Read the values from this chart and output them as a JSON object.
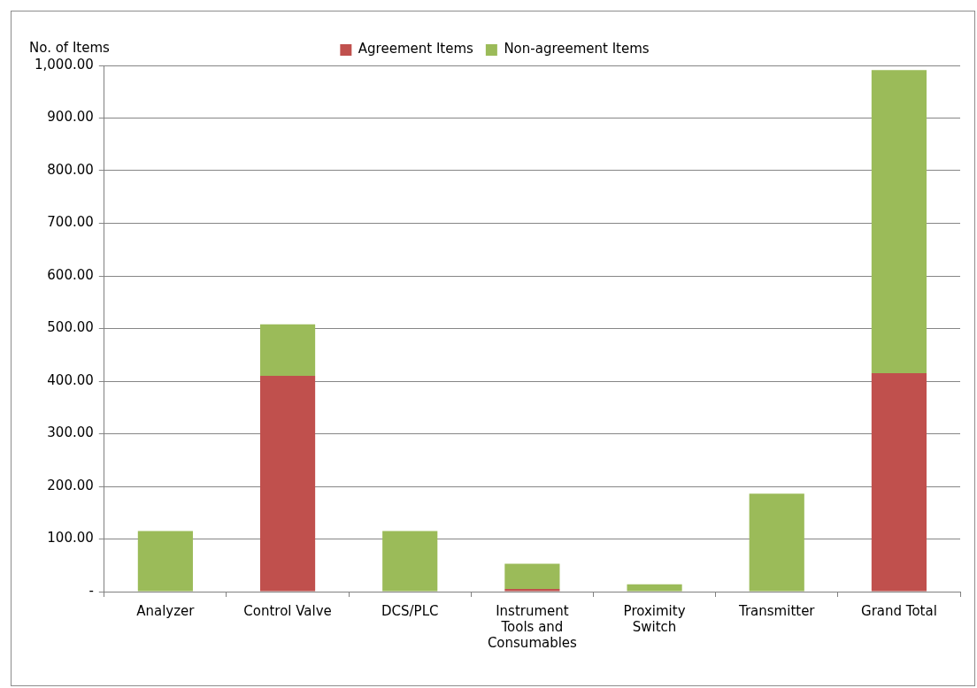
{
  "chart_data": {
    "type": "bar",
    "stacked": true,
    "ylabel": "No. of Items",
    "categories": [
      "Analyzer",
      "Control Valve",
      "DCS/PLC",
      "Instrument Tools and Consumables",
      "Proximity Switch",
      "Transmitter",
      "Grand Total"
    ],
    "series": [
      {
        "name": "Agreement Items",
        "color": "#c0504d",
        "values": [
          0,
          410,
          0,
          5,
          0,
          0,
          415
        ]
      },
      {
        "name": "Non-agreement Items",
        "color": "#9bbb59",
        "values": [
          115,
          98,
          115,
          48,
          14,
          186,
          576
        ]
      }
    ],
    "ylim": [
      0,
      1000
    ],
    "yticks": [
      {
        "value": 0,
        "label": "-"
      },
      {
        "value": 100,
        "label": "100.00"
      },
      {
        "value": 200,
        "label": "200.00"
      },
      {
        "value": 300,
        "label": "300.00"
      },
      {
        "value": 400,
        "label": "400.00"
      },
      {
        "value": 500,
        "label": "500.00"
      },
      {
        "value": 600,
        "label": "600.00"
      },
      {
        "value": 700,
        "label": "700.00"
      },
      {
        "value": 800,
        "label": "800.00"
      },
      {
        "value": 900,
        "label": "900.00"
      },
      {
        "value": 1000,
        "label": "1,000.00"
      }
    ],
    "grid": "y",
    "legend": "top"
  }
}
